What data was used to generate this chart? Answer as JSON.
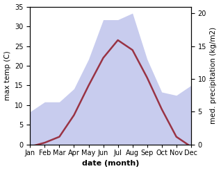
{
  "months": [
    "Jan",
    "Feb",
    "Mar",
    "Apr",
    "May",
    "Jun",
    "Jul",
    "Aug",
    "Sep",
    "Oct",
    "Nov",
    "Dec"
  ],
  "temperature": [
    -0.5,
    0.5,
    2.0,
    7.5,
    15.0,
    22.0,
    26.5,
    24.0,
    17.0,
    9.0,
    2.0,
    -0.5
  ],
  "precipitation": [
    5.0,
    6.5,
    6.5,
    8.5,
    13.0,
    19.0,
    19.0,
    20.0,
    13.0,
    8.0,
    7.5,
    9.0
  ],
  "temp_color": "#993344",
  "precip_fill_color": "#c8ccee",
  "temp_ylim": [
    0,
    35
  ],
  "precip_ylim": [
    0,
    21
  ],
  "temp_yticks": [
    0,
    5,
    10,
    15,
    20,
    25,
    30,
    35
  ],
  "precip_yticks": [
    0,
    5,
    10,
    15,
    20
  ],
  "xlabel": "date (month)",
  "ylabel_left": "max temp (C)",
  "ylabel_right": "med. precipitation (kg/m2)",
  "bg_color": "#ffffff",
  "temp_linewidth": 1.8,
  "label_fontsize": 7.5,
  "tick_fontsize": 7,
  "xlabel_fontsize": 8
}
